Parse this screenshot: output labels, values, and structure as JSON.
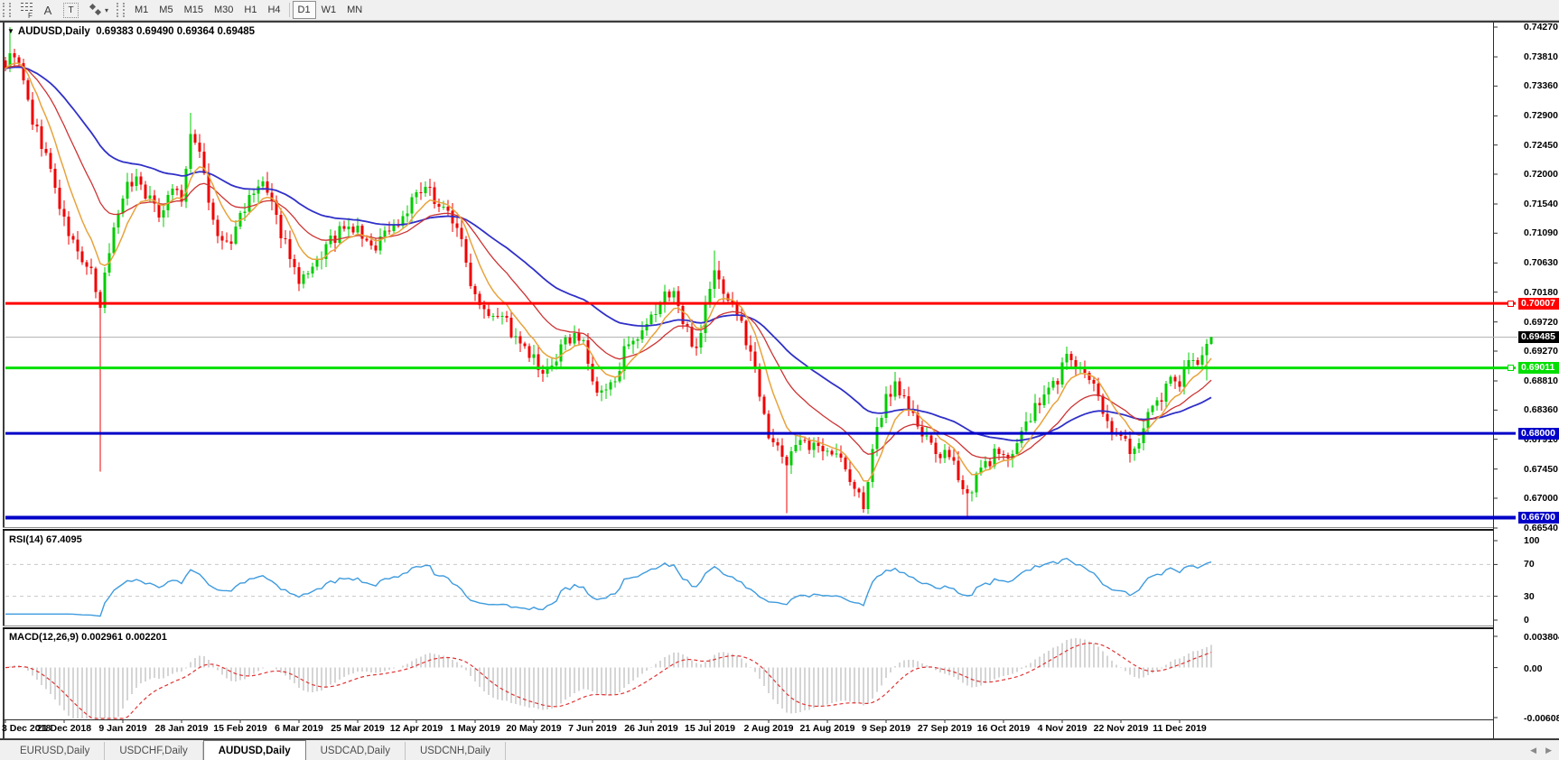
{
  "toolbar": {
    "text_tool": "A",
    "label_tool": "T",
    "periods": [
      "M1",
      "M5",
      "M15",
      "M30",
      "H1",
      "H4",
      "D1",
      "W1",
      "MN"
    ],
    "active_period": "D1"
  },
  "chart": {
    "symbol_title": "AUDUSD,Daily",
    "ohlc_line": "0.69383 0.69490 0.69364 0.69485"
  },
  "tabs": {
    "items": [
      {
        "label": "EURUSD,Daily"
      },
      {
        "label": "USDCHF,Daily"
      },
      {
        "label": "AUDUSD,Daily"
      },
      {
        "label": "USDCAD,Daily"
      },
      {
        "label": "USDCNH,Daily"
      }
    ],
    "active_label": "AUDUSD,Daily"
  },
  "chart_data": {
    "type": "candlestick",
    "symbol": "AUDUSD",
    "timeframe": "Daily",
    "bars": 268,
    "bars_per_date_tick": 13,
    "price_axis": {
      "max": 0.7427,
      "min": 0.6654,
      "ticks": [
        "0.74270",
        "0.73810",
        "0.73360",
        "0.72900",
        "0.72450",
        "0.72000",
        "0.71540",
        "0.71090",
        "0.70630",
        "0.70180",
        "0.69720",
        "0.69270",
        "0.68810",
        "0.68360",
        "0.67910",
        "0.67450",
        "0.67000",
        "0.66540"
      ]
    },
    "date_ticks": [
      "3 Dec 2018",
      "21 Dec 2018",
      "9 Jan 2019",
      "28 Jan 2019",
      "15 Feb 2019",
      "6 Mar 2019",
      "25 Mar 2019",
      "12 Apr 2019",
      "1 May 2019",
      "20 May 2019",
      "7 Jun 2019",
      "26 Jun 2019",
      "15 Jul 2019",
      "2 Aug 2019",
      "21 Aug 2019",
      "9 Sep 2019",
      "27 Sep 2019",
      "16 Oct 2019",
      "4 Nov 2019",
      "22 Nov 2019",
      "11 Dec 2019"
    ],
    "bid": {
      "price": 0.69485,
      "label": "0.69485",
      "badge_color": "#000000"
    },
    "last_ohlc": {
      "open": "0.69383",
      "high": "0.69490",
      "low": "0.69364",
      "close": "0.69485"
    },
    "hlines": [
      {
        "price": 0.70007,
        "label": "0.70007",
        "color": "#FF0000",
        "width": 3,
        "handle": true
      },
      {
        "price": 0.69011,
        "label": "0.69011",
        "color": "#00DF00",
        "width": 3,
        "handle": true
      },
      {
        "price": 0.68,
        "label": "0.68000",
        "color": "#0000C8",
        "width": 3,
        "handle": false
      },
      {
        "price": 0.667,
        "label": "0.66700",
        "color": "#0000C8",
        "width": 4,
        "handle": false
      }
    ],
    "close_path": [
      [
        0,
        0.737
      ],
      [
        2,
        0.7388
      ],
      [
        4,
        0.734
      ],
      [
        6,
        0.7282
      ],
      [
        9,
        0.723
      ],
      [
        13,
        0.7125
      ],
      [
        16,
        0.7078
      ],
      [
        19,
        0.7046
      ],
      [
        20,
        0.701
      ],
      [
        21,
        0.6995
      ],
      [
        23,
        0.7085
      ],
      [
        26,
        0.7172
      ],
      [
        29,
        0.7196
      ],
      [
        32,
        0.716
      ],
      [
        34,
        0.714
      ],
      [
        37,
        0.7182
      ],
      [
        39,
        0.7162
      ],
      [
        41,
        0.7252
      ],
      [
        43,
        0.7242
      ],
      [
        45,
        0.716
      ],
      [
        47,
        0.7098
      ],
      [
        50,
        0.7092
      ],
      [
        52,
        0.714
      ],
      [
        55,
        0.7168
      ],
      [
        57,
        0.7188
      ],
      [
        60,
        0.7128
      ],
      [
        63,
        0.7078
      ],
      [
        65,
        0.7028
      ],
      [
        68,
        0.7048
      ],
      [
        71,
        0.7088
      ],
      [
        74,
        0.711
      ],
      [
        78,
        0.7115
      ],
      [
        81,
        0.7082
      ],
      [
        84,
        0.7112
      ],
      [
        87,
        0.7125
      ],
      [
        91,
        0.7168
      ],
      [
        94,
        0.7172
      ],
      [
        97,
        0.7148
      ],
      [
        100,
        0.7122
      ],
      [
        102,
        0.706
      ],
      [
        104,
        0.7016
      ],
      [
        107,
        0.699
      ],
      [
        110,
        0.6986
      ],
      [
        113,
        0.6942
      ],
      [
        117,
        0.6912
      ],
      [
        119,
        0.6882
      ],
      [
        123,
        0.6928
      ],
      [
        126,
        0.6958
      ],
      [
        128,
        0.6935
      ],
      [
        131,
        0.6856
      ],
      [
        134,
        0.6872
      ],
      [
        137,
        0.6925
      ],
      [
        140,
        0.6938
      ],
      [
        143,
        0.6975
      ],
      [
        146,
        0.7012
      ],
      [
        148,
        0.7022
      ],
      [
        150,
        0.6968
      ],
      [
        153,
        0.6932
      ],
      [
        156,
        0.7025
      ],
      [
        157,
        0.7048
      ],
      [
        159,
        0.7022
      ],
      [
        162,
        0.6985
      ],
      [
        165,
        0.6925
      ],
      [
        168,
        0.6838
      ],
      [
        169,
        0.68
      ],
      [
        171,
        0.6772
      ],
      [
        173,
        0.6758
      ],
      [
        175,
        0.6788
      ],
      [
        178,
        0.6775
      ],
      [
        182,
        0.6782
      ],
      [
        185,
        0.6758
      ],
      [
        188,
        0.6712
      ],
      [
        190,
        0.6692
      ],
      [
        193,
        0.6802
      ],
      [
        195,
        0.6855
      ],
      [
        197,
        0.6878
      ],
      [
        200,
        0.6842
      ],
      [
        203,
        0.6795
      ],
      [
        206,
        0.6772
      ],
      [
        208,
        0.6765
      ],
      [
        211,
        0.6738
      ],
      [
        213,
        0.6705
      ],
      [
        216,
        0.6742
      ],
      [
        219,
        0.6768
      ],
      [
        221,
        0.6758
      ],
      [
        224,
        0.6788
      ],
      [
        227,
        0.6825
      ],
      [
        230,
        0.6858
      ],
      [
        233,
        0.6885
      ],
      [
        235,
        0.6922
      ],
      [
        238,
        0.6898
      ],
      [
        241,
        0.6868
      ],
      [
        244,
        0.6822
      ],
      [
        247,
        0.6792
      ],
      [
        250,
        0.6772
      ],
      [
        253,
        0.6822
      ],
      [
        256,
        0.6852
      ],
      [
        258,
        0.6888
      ],
      [
        260,
        0.6882
      ],
      [
        262,
        0.6918
      ],
      [
        264,
        0.6898
      ],
      [
        266,
        0.6938
      ],
      [
        267,
        0.6949
      ]
    ],
    "wick_events": [
      {
        "i": 1,
        "high": 0.7427
      },
      {
        "i": 21,
        "low": 0.6741
      },
      {
        "i": 41,
        "high": 0.7295
      },
      {
        "i": 157,
        "high": 0.7082
      },
      {
        "i": 173,
        "low": 0.6677
      },
      {
        "i": 190,
        "low": 0.6678
      },
      {
        "i": 213,
        "low": 0.6671
      },
      {
        "i": 266,
        "high": 0.6946,
        "low": 0.6882
      },
      {
        "i": 267,
        "high": 0.6949,
        "low": 0.69364
      }
    ],
    "indicators": {
      "rsi": {
        "label": "RSI(14) 67.4095",
        "period": 14,
        "value": 67.4095,
        "scale_labels": [
          "100",
          "70",
          "30",
          "0"
        ],
        "scale_values": [
          100,
          70,
          30,
          0
        ],
        "dashed_levels": [
          70,
          30
        ],
        "color": "#3E9BDE"
      },
      "macd": {
        "label": "MACD(12,26,9) 0.002961 0.002201",
        "value_main": 0.002961,
        "value_signal": 0.002201,
        "scale_labels": [
          "0.003804",
          "0.00",
          "-0.006087"
        ],
        "scale_values": [
          0.003804,
          0,
          -0.006087
        ],
        "scale_max": 0.003804,
        "scale_min": -0.006087,
        "hist_color": "#ABABAB",
        "signal_color": "#E03232"
      }
    },
    "colors": {
      "up": "#00CC00",
      "down": "#F00000",
      "bid_line": "#B4B4B4",
      "ma_fast": "#E8A33C",
      "ma_mid": "#CD3333",
      "ma_slow": "#3030C8",
      "level_dashed": "#C8C8C8"
    }
  }
}
